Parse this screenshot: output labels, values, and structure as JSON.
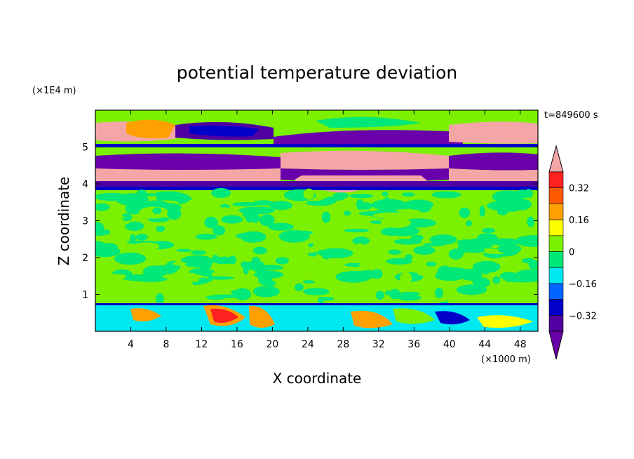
{
  "chart_data": {
    "type": "heatmap",
    "title": "potential temperature deviation",
    "xlabel": "X coordinate",
    "ylabel": "Z coordinate",
    "x_unit": "(×1000 m)",
    "y_unit": "(×1E4 m)",
    "time_label": "t=849600 s",
    "xlim": [
      0,
      50
    ],
    "ylim": [
      0,
      6
    ],
    "x_ticks": [
      "4",
      "8",
      "12",
      "16",
      "20",
      "24",
      "28",
      "32",
      "36",
      "40",
      "44",
      "48"
    ],
    "y_ticks": [
      "1",
      "2",
      "3",
      "4",
      "5"
    ],
    "colorbar": {
      "levels": [
        -0.4,
        -0.32,
        -0.24,
        -0.16,
        -0.08,
        0,
        0.08,
        0.16,
        0.24,
        0.32,
        0.4
      ],
      "tick_labels": [
        "0.32",
        "0.16",
        "0",
        "−0.16",
        "−0.32"
      ],
      "colors_top_to_bottom": [
        "#f4a6a6",
        "#ff2020",
        "#ff5a00",
        "#ffa000",
        "#ffff00",
        "#7bf000",
        "#00e878",
        "#00e8f0",
        "#0064ff",
        "#0000c8",
        "#5000a0",
        "#6a00aa"
      ]
    }
  }
}
